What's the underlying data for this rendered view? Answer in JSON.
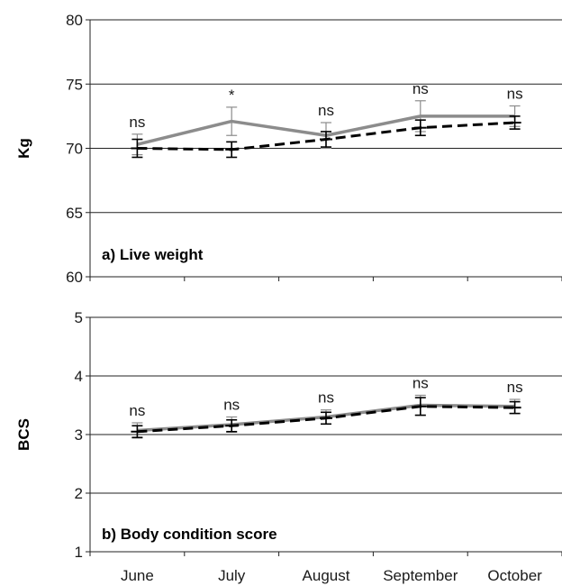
{
  "chart_data": [
    {
      "type": "line",
      "panel_label": "a) Live weight",
      "ylabel": "Kg",
      "ylim": [
        60,
        80
      ],
      "yticks": [
        "60",
        "65",
        "70",
        "75",
        "80"
      ],
      "categories": [
        "June",
        "July",
        "August",
        "September",
        "October"
      ],
      "grid": true,
      "series": [
        {
          "style": "solid",
          "color": "#8c8c8c",
          "values": [
            70.3,
            72.1,
            71.0,
            72.5,
            72.5
          ],
          "errors": [
            0.8,
            1.1,
            1.0,
            1.2,
            0.8
          ]
        },
        {
          "style": "dashed",
          "color": "#000000",
          "values": [
            70.0,
            69.9,
            70.7,
            71.6,
            72.0
          ],
          "errors": [
            0.7,
            0.6,
            0.6,
            0.6,
            0.5
          ]
        }
      ],
      "significance": [
        "ns",
        "*",
        "ns",
        "ns",
        "ns"
      ]
    },
    {
      "type": "line",
      "panel_label": "b) Body condition score",
      "ylabel": "BCS",
      "ylim": [
        1,
        5
      ],
      "yticks": [
        "1",
        "2",
        "3",
        "4",
        "5"
      ],
      "categories": [
        "June",
        "July",
        "August",
        "September",
        "October"
      ],
      "grid": true,
      "series": [
        {
          "style": "solid",
          "color": "#8c8c8c",
          "values": [
            3.07,
            3.17,
            3.3,
            3.5,
            3.48
          ],
          "errors": [
            0.13,
            0.13,
            0.12,
            0.17,
            0.12
          ]
        },
        {
          "style": "dashed",
          "color": "#000000",
          "values": [
            3.05,
            3.15,
            3.28,
            3.48,
            3.46
          ],
          "errors": [
            0.1,
            0.1,
            0.1,
            0.15,
            0.1
          ]
        }
      ],
      "significance": [
        "ns",
        "ns",
        "ns",
        "ns",
        "ns"
      ]
    }
  ]
}
